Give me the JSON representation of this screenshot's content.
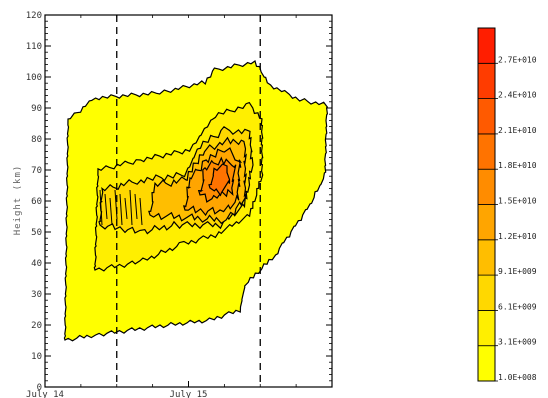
{
  "chart_data": {
    "type": "contour",
    "ylabel": "Height (km)",
    "xlabel": "",
    "title": "",
    "y_ticks": [
      0,
      10,
      20,
      30,
      40,
      50,
      60,
      70,
      80,
      90,
      100,
      110,
      120
    ],
    "ylim": [
      0,
      120
    ],
    "x_tick_labels": [
      "July 14",
      "July 15"
    ],
    "xlim": [
      0,
      2
    ],
    "dashed_x_lines": [
      0.5,
      1.5
    ],
    "contour_levels": [
      "1.0E+008",
      "3.1E+009",
      "6.1E+009",
      "9.1E+009",
      "1.2E+010",
      "1.5E+010",
      "1.8E+010",
      "2.1E+010",
      "2.4E+010",
      "2.7E+010"
    ],
    "colorbar_colors": [
      "#ffff00",
      "#ffef00",
      "#ffd800",
      "#ffbe00",
      "#ffa500",
      "#ff8c00",
      "#ff7300",
      "#ff5a00",
      "#ff3c00",
      "#ff1e00"
    ]
  }
}
